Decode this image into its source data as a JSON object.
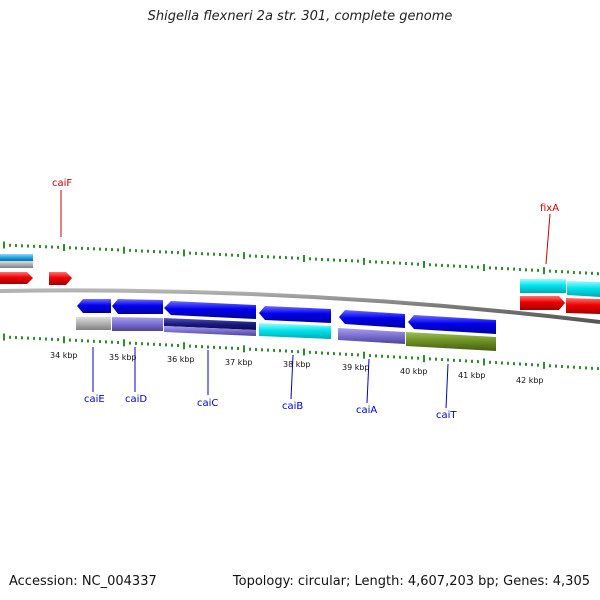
{
  "title": "Shigella flexneri 2a str. 301, complete genome",
  "footer": {
    "accession": "Accession: NC_004337",
    "summary": "Topology: circular; Length: 4,607,203 bp; Genes: 4,305"
  },
  "colors": {
    "gene_label": "#0000cc",
    "highlight_label": "#cc0000",
    "ticks": "#2e8b2e",
    "backbone": "#808080",
    "blue": "#0000ee",
    "cyan": "#00e5ee",
    "red": "#ee0000",
    "light_blue": "#1ea5e6",
    "grey": "#b0b0b0",
    "purple": "#7a6fd0",
    "navy": "#1a1a80",
    "olive": "#6b8e23"
  },
  "axis": {
    "unit": "kbp",
    "ticks": [
      {
        "label": "34 kbp"
      },
      {
        "label": "35 kbp"
      },
      {
        "label": "36 kbp"
      },
      {
        "label": "37 kbp"
      },
      {
        "label": "38 kbp"
      },
      {
        "label": "39 kbp"
      },
      {
        "label": "40 kbp"
      },
      {
        "label": "41 kbp"
      },
      {
        "label": "42 kbp"
      }
    ]
  },
  "genes_below": [
    {
      "name": "caiE"
    },
    {
      "name": "caiD"
    },
    {
      "name": "caiC"
    },
    {
      "name": "caiB"
    },
    {
      "name": "caiA"
    },
    {
      "name": "caiT"
    }
  ],
  "genes_above": [
    {
      "name": "caiF"
    },
    {
      "name": "fixA"
    }
  ]
}
